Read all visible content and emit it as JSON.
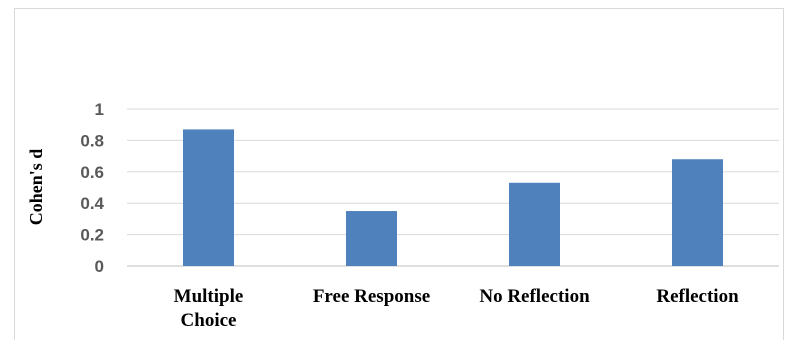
{
  "chart_data": {
    "type": "bar",
    "title": "",
    "xlabel": "",
    "ylabel": "Cohen's d",
    "categories": [
      [
        "Multiple",
        "Choice"
      ],
      [
        "Free Response"
      ],
      [
        "No Reflection"
      ],
      [
        "Reflection"
      ]
    ],
    "values": [
      0.87,
      0.35,
      0.53,
      0.68
    ],
    "ylim": [
      0,
      1
    ],
    "yticks": [
      "0",
      "0.2",
      "0.4",
      "0.6",
      "0.8",
      "1"
    ],
    "grid": true,
    "legend": "none",
    "colors": {
      "bar": "#4f81bd",
      "grid": "#d9d9d9",
      "axis": "#bfbfbf"
    }
  }
}
